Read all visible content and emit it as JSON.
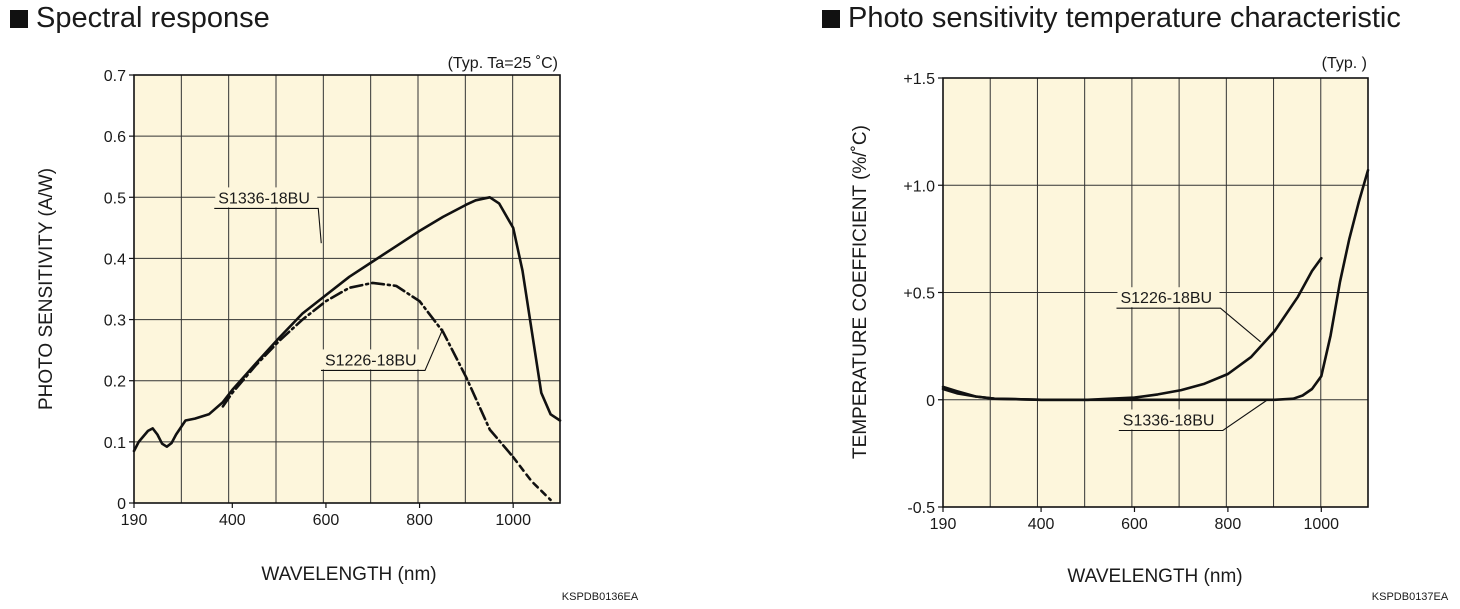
{
  "chart_data": [
    {
      "type": "line",
      "title": "Spectral response",
      "note": "(Typ. Ta=25 ˚C)",
      "xlabel": "WAVELENGTH (nm)",
      "ylabel": "PHOTO SENSITIVITY (A/W)",
      "xlim": [
        190,
        1100
      ],
      "ylim": [
        0,
        0.7
      ],
      "xticks": [
        190,
        400,
        600,
        800,
        1000
      ],
      "xtick_labels": [
        "190",
        "400",
        "600",
        "800",
        "1000"
      ],
      "yticks": [
        0,
        0.1,
        0.2,
        0.3,
        0.4,
        0.5,
        0.6,
        0.7
      ],
      "ytick_labels": [
        "0",
        "0.1",
        "0.2",
        "0.3",
        "0.4",
        "0.5",
        "0.6",
        "0.7"
      ],
      "grid": true,
      "background": "#fdf6dc",
      "code": "KSPDB0136EA",
      "series": [
        {
          "name": "S1336-18BU",
          "style": "solid",
          "x": [
            190,
            200,
            220,
            230,
            240,
            250,
            260,
            270,
            280,
            300,
            320,
            350,
            380,
            400,
            450,
            500,
            550,
            600,
            650,
            700,
            750,
            800,
            850,
            900,
            920,
            950,
            970,
            1000,
            1020,
            1040,
            1060,
            1080,
            1100
          ],
          "y": [
            0.085,
            0.1,
            0.118,
            0.122,
            0.112,
            0.097,
            0.092,
            0.098,
            0.112,
            0.135,
            0.138,
            0.145,
            0.165,
            0.185,
            0.228,
            0.27,
            0.31,
            0.34,
            0.37,
            0.395,
            0.42,
            0.445,
            0.468,
            0.488,
            0.495,
            0.5,
            0.49,
            0.45,
            0.38,
            0.28,
            0.18,
            0.145,
            0.135
          ]
        },
        {
          "name": "S1226-18BU",
          "style": "dashdot",
          "x": [
            380,
            400,
            450,
            500,
            550,
            600,
            650,
            700,
            750,
            800,
            850,
            900,
            950,
            1000
          ],
          "y": [
            0.158,
            0.18,
            0.225,
            0.265,
            0.3,
            0.33,
            0.352,
            0.36,
            0.355,
            0.33,
            0.28,
            0.205,
            0.12,
            0.075
          ]
        },
        {
          "name": "S1226-18BU",
          "style": "dashed",
          "x": [
            1000,
            1020,
            1040,
            1060,
            1080
          ],
          "y": [
            0.075,
            0.055,
            0.035,
            0.02,
            0.005
          ]
        }
      ],
      "labels": [
        {
          "text": "S1336-18BU",
          "x": 370,
          "y": 0.49,
          "target_x": 590,
          "target_y": 0.425
        },
        {
          "text": "S1226-18BU",
          "x": 598,
          "y": 0.225,
          "target_x": 850,
          "target_y": 0.285
        }
      ]
    },
    {
      "type": "line",
      "title": "Photo sensitivity temperature characteristic",
      "note": "(Typ. )",
      "xlabel": "WAVELENGTH (nm)",
      "ylabel": "TEMPERATURE COEFFICIENT (%/˚C)",
      "xlim": [
        190,
        1100
      ],
      "ylim": [
        -0.5,
        1.5
      ],
      "xticks": [
        190,
        400,
        600,
        800,
        1000
      ],
      "xtick_labels": [
        "190",
        "400",
        "600",
        "800",
        "1000"
      ],
      "yticks": [
        -0.5,
        0,
        0.5,
        1.0,
        1.5
      ],
      "ytick_labels": [
        "-0.5",
        "0",
        "+0.5",
        "+1.0",
        "+1.5"
      ],
      "grid": true,
      "background": "#fdf6dc",
      "code": "KSPDB0137EA",
      "series": [
        {
          "name": "S1226-18BU",
          "style": "solid",
          "x": [
            190,
            220,
            260,
            300,
            400,
            500,
            600,
            650,
            700,
            750,
            800,
            850,
            900,
            950,
            980,
            1000
          ],
          "y": [
            0.05,
            0.03,
            0.015,
            0.005,
            0.0,
            0.0,
            0.01,
            0.025,
            0.045,
            0.075,
            0.12,
            0.2,
            0.32,
            0.48,
            0.6,
            0.66
          ]
        },
        {
          "name": "S1336-18BU",
          "style": "solid",
          "x": [
            190,
            220,
            260,
            300,
            400,
            600,
            800,
            900,
            940,
            960,
            980,
            1000,
            1020,
            1040,
            1060,
            1080,
            1100
          ],
          "y": [
            0.06,
            0.04,
            0.015,
            0.005,
            0.0,
            0.0,
            0.0,
            0.0,
            0.005,
            0.02,
            0.05,
            0.11,
            0.3,
            0.55,
            0.75,
            0.92,
            1.07
          ]
        }
      ],
      "labels": [
        {
          "text": "S1226-18BU",
          "x": 570,
          "y": 0.45,
          "target_x": 870,
          "target_y": 0.27
        },
        {
          "text": "S1336-18BU",
          "x": 575,
          "y": -0.12,
          "target_x": 885,
          "target_y": 0.0
        }
      ]
    }
  ]
}
